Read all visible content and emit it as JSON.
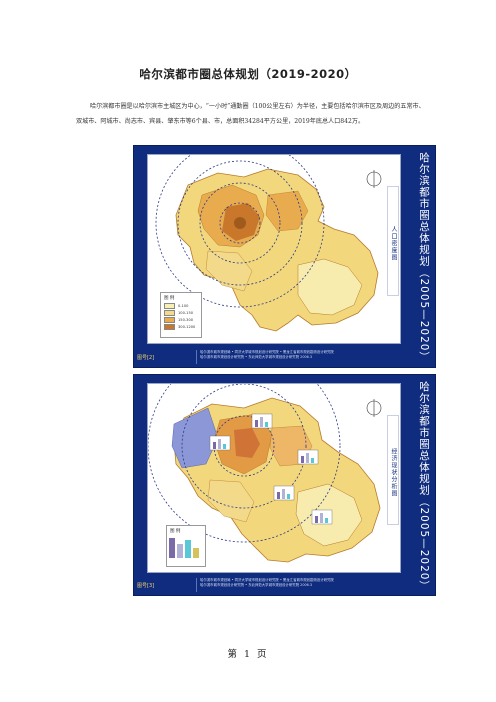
{
  "document": {
    "title": "哈尔滨都市圈总体规划（2019-2020）",
    "paragraph_line1": "哈尔滨都市圈是以哈尔滨市主城区为中心，“一小时”通勤圈（100公里左右）为半径，主要包括哈尔滨市区及周边的五常市、",
    "paragraph_line2": "双城市、阿城市、尚志市、宾县、肇东市等6个县、市，总面积34284平方公里，2019年底总人口842万。",
    "page_footer": "第 1 页"
  },
  "figures": [
    {
      "side_title": "哈尔滨都市圈总体规划（2005—2020）",
      "side_subtitle": "人口密度图",
      "figure_number": "图号[2]",
      "credits": [
        "哈尔滨市城市规划局 • 同济大学城市规划设计研究院 • 黑龙江省城市规划勘测设计研究院",
        "哈尔滨市城市规划设计研究院 • 东北师范大学城市规划设计研究院  2006.3"
      ],
      "legend": {
        "title": "图 例",
        "items": [
          {
            "label": "0-100",
            "color": "#f7f0b4"
          },
          {
            "label": "100-150",
            "color": "#f3d98a"
          },
          {
            "label": "150-300",
            "color": "#e8ac4f"
          },
          {
            "label": "300-1200",
            "color": "#c9782b"
          }
        ]
      }
    },
    {
      "side_title": "哈尔滨都市圈总体规划（2005—2020）",
      "side_subtitle": "经济现状分析图",
      "figure_number": "图号[3]",
      "credits": [
        "哈尔滨市城市规划局 • 同济大学城市规划设计研究院 • 黑龙江省城市规划勘测设计研究院",
        "哈尔滨市城市规划设计研究院 • 东北师范大学城市规划设计研究院  2006.3"
      ],
      "legend": {
        "title": "图 例"
      }
    }
  ],
  "colors": {
    "frame_blue": "#0f2c7e",
    "map_yellow": "#f2d77c",
    "map_orange": "#e39a45",
    "map_light": "#f7ecae",
    "map_purple": "#8b97d6"
  }
}
